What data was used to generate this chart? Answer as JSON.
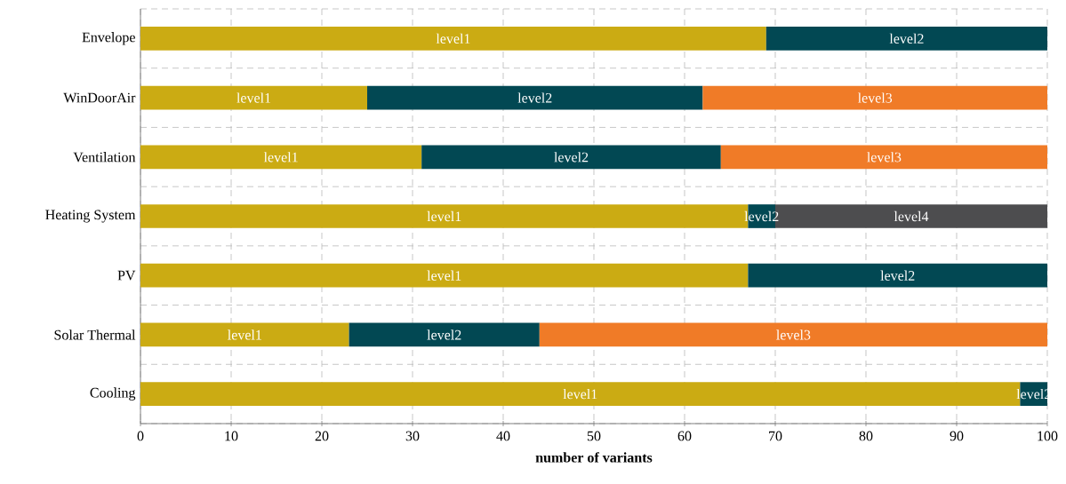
{
  "chart_data": {
    "type": "bar",
    "orientation": "horizontal",
    "stacked": true,
    "categories": [
      "Envelope",
      "WinDoorAir",
      "Ventilation",
      "Heating System",
      "PV",
      "Solar Thermal",
      "Cooling"
    ],
    "series": [
      {
        "name": "level1",
        "color": "#cbab13",
        "values": [
          69,
          25,
          31,
          67,
          67,
          23,
          97
        ]
      },
      {
        "name": "level2",
        "color": "#024853",
        "values": [
          31,
          37,
          33,
          3,
          33,
          21,
          3
        ]
      },
      {
        "name": "level3",
        "color": "#f07b27",
        "values": [
          null,
          38,
          36,
          null,
          null,
          56,
          null
        ]
      },
      {
        "name": "level4",
        "color": "#4d4d4f",
        "values": [
          null,
          null,
          null,
          30,
          null,
          null,
          null
        ]
      }
    ],
    "xlabel": "number of variants",
    "xlim": [
      0,
      100
    ],
    "xticks": [
      0,
      10,
      20,
      30,
      40,
      50,
      60,
      70,
      80,
      90,
      100
    ],
    "grid": true
  }
}
